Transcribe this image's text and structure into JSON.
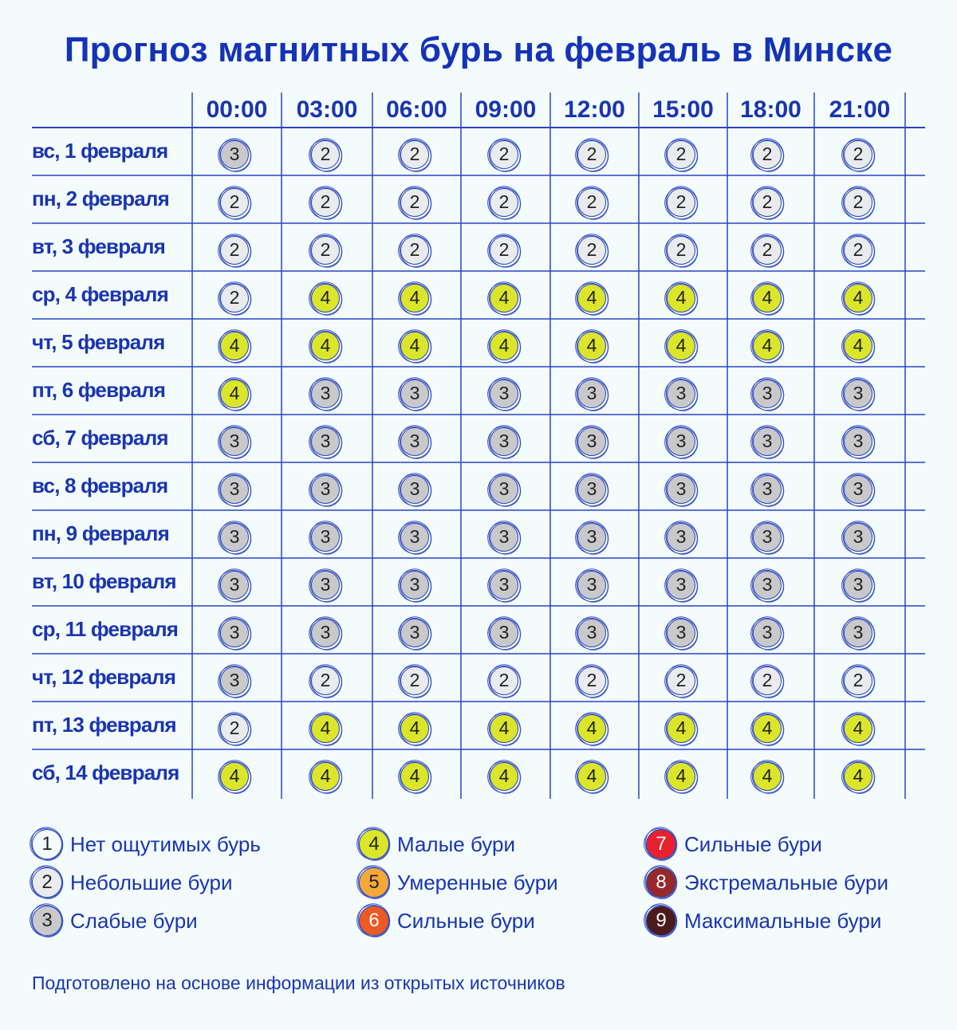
{
  "title": "Прогноз магнитных бурь на февраль в Минске",
  "chart_data": {
    "type": "table",
    "columns": [
      "00:00",
      "03:00",
      "06:00",
      "09:00",
      "12:00",
      "15:00",
      "18:00",
      "21:00"
    ],
    "rows": [
      {
        "day": "вс, 1 февраля",
        "values": [
          3,
          2,
          2,
          2,
          2,
          2,
          2,
          2
        ]
      },
      {
        "day": "пн, 2 февраля",
        "values": [
          2,
          2,
          2,
          2,
          2,
          2,
          2,
          2
        ]
      },
      {
        "day": "вт, 3 февраля",
        "values": [
          2,
          2,
          2,
          2,
          2,
          2,
          2,
          2
        ]
      },
      {
        "day": "ср, 4 февраля",
        "values": [
          2,
          4,
          4,
          4,
          4,
          4,
          4,
          4
        ]
      },
      {
        "day": "чт, 5 февраля",
        "values": [
          4,
          4,
          4,
          4,
          4,
          4,
          4,
          4
        ]
      },
      {
        "day": "пт, 6 февраля",
        "values": [
          4,
          3,
          3,
          3,
          3,
          3,
          3,
          3
        ]
      },
      {
        "day": "сб, 7 февраля",
        "values": [
          3,
          3,
          3,
          3,
          3,
          3,
          3,
          3
        ]
      },
      {
        "day": "вс, 8 февраля",
        "values": [
          3,
          3,
          3,
          3,
          3,
          3,
          3,
          3
        ]
      },
      {
        "day": "пн, 9 февраля",
        "values": [
          3,
          3,
          3,
          3,
          3,
          3,
          3,
          3
        ]
      },
      {
        "day": "вт, 10 февраля",
        "values": [
          3,
          3,
          3,
          3,
          3,
          3,
          3,
          3
        ]
      },
      {
        "day": "ср, 11 февраля",
        "values": [
          3,
          3,
          3,
          3,
          3,
          3,
          3,
          3
        ]
      },
      {
        "day": "чт, 12 февраля",
        "values": [
          3,
          2,
          2,
          2,
          2,
          2,
          2,
          2
        ]
      },
      {
        "day": "пт, 13 февраля",
        "values": [
          2,
          4,
          4,
          4,
          4,
          4,
          4,
          4
        ]
      },
      {
        "day": "сб, 14 февраля",
        "values": [
          4,
          4,
          4,
          4,
          4,
          4,
          4,
          4
        ]
      }
    ],
    "level_colors": {
      "1": "#f3fbfc",
      "2": "#e9ebee",
      "3": "#c9c9cb",
      "4": "#dbe62a",
      "5": "#f5a83a",
      "6": "#ee5a24",
      "7": "#e8212e",
      "8": "#97282b",
      "9": "#4b1b1c"
    },
    "legend": [
      {
        "level": "1",
        "label": "Нет ощутимых бурь"
      },
      {
        "level": "2",
        "label": "Небольшие бури"
      },
      {
        "level": "3",
        "label": "Слабые бури"
      },
      {
        "level": "4",
        "label": "Малые бури"
      },
      {
        "level": "5",
        "label": "Умеренные бури"
      },
      {
        "level": "6",
        "label": "Сильные бури"
      },
      {
        "level": "7",
        "label": "Сильные бури"
      },
      {
        "level": "8",
        "label": "Экстремальные бури"
      },
      {
        "level": "9",
        "label": "Максимальные бури"
      }
    ]
  },
  "footer": "Подготовлено на основе информации из открытых источников"
}
